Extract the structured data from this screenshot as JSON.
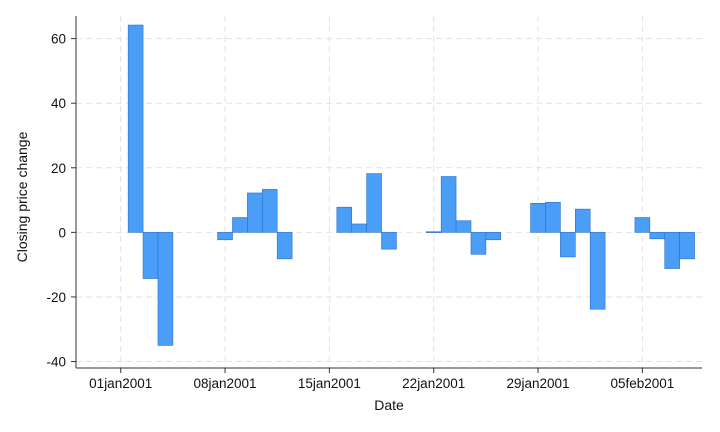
{
  "chart_data": {
    "type": "bar",
    "xlabel": "Date",
    "ylabel": "Closing price change",
    "ylim": [
      -42,
      67
    ],
    "grid": true,
    "legend": "none",
    "colors": {
      "bar_fill": "#4a9ef8",
      "bar_stroke": "#2a6fc4",
      "grid": "#e2e2e2",
      "axis": "#333333"
    },
    "x_ticks": [
      {
        "date": "2001-01-01",
        "label": "01jan2001"
      },
      {
        "date": "2001-01-08",
        "label": "08jan2001"
      },
      {
        "date": "2001-01-15",
        "label": "15jan2001"
      },
      {
        "date": "2001-01-22",
        "label": "22jan2001"
      },
      {
        "date": "2001-01-29",
        "label": "29jan2001"
      },
      {
        "date": "2001-02-05",
        "label": "05feb2001"
      }
    ],
    "y_ticks": [
      {
        "value": -40,
        "label": "-40"
      },
      {
        "value": -20,
        "label": "-20"
      },
      {
        "value": 0,
        "label": "0"
      },
      {
        "value": 20,
        "label": "20"
      },
      {
        "value": 40,
        "label": "40"
      },
      {
        "value": 60,
        "label": "60"
      }
    ],
    "series": [
      {
        "points": [
          {
            "date": "2001-01-02",
            "value": 64.2
          },
          {
            "date": "2001-01-03",
            "value": -14.3
          },
          {
            "date": "2001-01-04",
            "value": -35.0
          },
          {
            "date": "2001-01-08",
            "value": -2.3
          },
          {
            "date": "2001-01-09",
            "value": 4.6
          },
          {
            "date": "2001-01-10",
            "value": 12.2
          },
          {
            "date": "2001-01-11",
            "value": 13.3
          },
          {
            "date": "2001-01-12",
            "value": -8.2
          },
          {
            "date": "2001-01-16",
            "value": 7.8
          },
          {
            "date": "2001-01-17",
            "value": 2.6
          },
          {
            "date": "2001-01-18",
            "value": 18.2
          },
          {
            "date": "2001-01-19",
            "value": -5.2
          },
          {
            "date": "2001-01-22",
            "value": 0.2
          },
          {
            "date": "2001-01-23",
            "value": 17.3
          },
          {
            "date": "2001-01-24",
            "value": 3.6
          },
          {
            "date": "2001-01-25",
            "value": -6.8
          },
          {
            "date": "2001-01-26",
            "value": -2.3
          },
          {
            "date": "2001-01-29",
            "value": 9.0
          },
          {
            "date": "2001-01-30",
            "value": 9.3
          },
          {
            "date": "2001-01-31",
            "value": -7.6
          },
          {
            "date": "2001-02-01",
            "value": 7.2
          },
          {
            "date": "2001-02-02",
            "value": -23.8
          },
          {
            "date": "2001-02-05",
            "value": 4.6
          },
          {
            "date": "2001-02-06",
            "value": -2.0
          },
          {
            "date": "2001-02-07",
            "value": -11.2
          },
          {
            "date": "2001-02-08",
            "value": -8.2
          }
        ]
      }
    ]
  }
}
